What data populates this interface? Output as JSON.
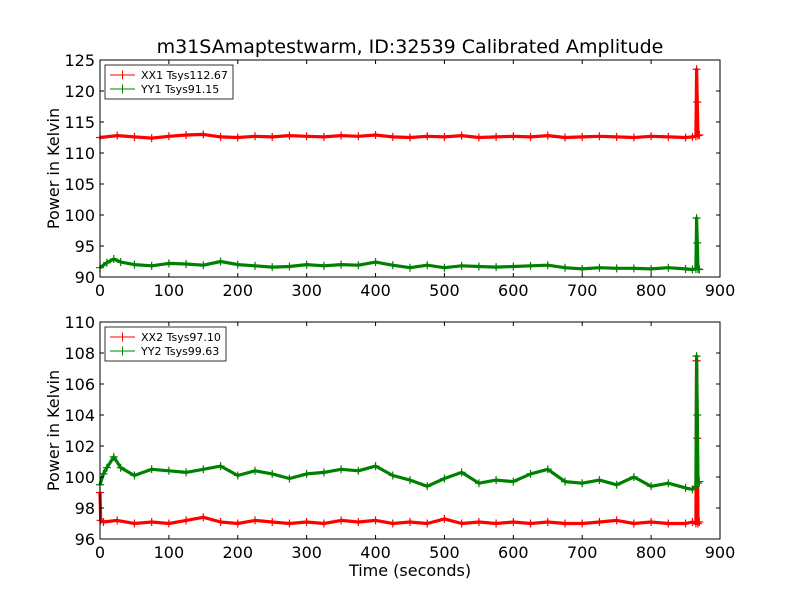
{
  "figure": {
    "title": "m31SAmaptestwarm, ID:32539 Calibrated Amplitude"
  },
  "chart_data": [
    {
      "type": "line",
      "title": "m31SAmaptestwarm, ID:32539 Calibrated Amplitude",
      "xlabel": "",
      "ylabel": "Power in Kelvin",
      "xlim": [
        0,
        900
      ],
      "ylim": [
        90,
        125
      ],
      "xticks": [
        "0",
        "100",
        "200",
        "300",
        "400",
        "500",
        "600",
        "700",
        "800",
        "900"
      ],
      "yticks": [
        "90",
        "95",
        "100",
        "105",
        "110",
        "115",
        "120",
        "125"
      ],
      "legend_position": "top-left",
      "grid": false,
      "series": [
        {
          "name": "XX1 Tsys112.67",
          "color": "#ff0000",
          "marker": "+",
          "x": [
            0,
            25,
            50,
            75,
            100,
            125,
            150,
            175,
            200,
            225,
            250,
            275,
            300,
            325,
            350,
            375,
            400,
            425,
            450,
            475,
            500,
            525,
            550,
            575,
            600,
            625,
            650,
            675,
            700,
            725,
            750,
            775,
            800,
            825,
            850,
            860,
            865,
            866,
            867,
            868,
            870
          ],
          "y": [
            112.5,
            112.8,
            112.6,
            112.4,
            112.7,
            112.9,
            113.0,
            112.6,
            112.5,
            112.7,
            112.6,
            112.8,
            112.7,
            112.6,
            112.8,
            112.7,
            112.9,
            112.6,
            112.5,
            112.7,
            112.6,
            112.8,
            112.5,
            112.6,
            112.7,
            112.6,
            112.8,
            112.5,
            112.6,
            112.7,
            112.6,
            112.5,
            112.7,
            112.6,
            112.5,
            112.6,
            112.7,
            123.5,
            118.2,
            112.8,
            112.9
          ]
        },
        {
          "name": "YY1 Tsys91.15",
          "color": "#008000",
          "marker": "+",
          "x": [
            0,
            10,
            20,
            30,
            50,
            75,
            100,
            125,
            150,
            175,
            200,
            225,
            250,
            275,
            300,
            325,
            350,
            375,
            400,
            425,
            450,
            475,
            500,
            525,
            550,
            575,
            600,
            625,
            650,
            675,
            700,
            725,
            750,
            775,
            800,
            825,
            850,
            860,
            865,
            866,
            867,
            868,
            870
          ],
          "y": [
            91.5,
            92.3,
            92.9,
            92.4,
            92.0,
            91.8,
            92.2,
            92.1,
            91.9,
            92.5,
            92.0,
            91.8,
            91.6,
            91.7,
            92.0,
            91.8,
            92.0,
            91.9,
            92.4,
            91.9,
            91.5,
            91.9,
            91.5,
            91.8,
            91.7,
            91.6,
            91.7,
            91.8,
            91.9,
            91.5,
            91.3,
            91.5,
            91.4,
            91.4,
            91.3,
            91.5,
            91.3,
            91.2,
            91.3,
            99.5,
            95.5,
            91.3,
            91.2
          ]
        }
      ]
    },
    {
      "type": "line",
      "title": "",
      "xlabel": "Time (seconds)",
      "ylabel": "Power in Kelvin",
      "xlim": [
        0,
        900
      ],
      "ylim": [
        96,
        110
      ],
      "xticks": [
        "0",
        "100",
        "200",
        "300",
        "400",
        "500",
        "600",
        "700",
        "800",
        "900"
      ],
      "yticks": [
        "96",
        "98",
        "100",
        "102",
        "104",
        "106",
        "108",
        "110"
      ],
      "legend_position": "top-left",
      "grid": false,
      "series": [
        {
          "name": "XX2 Tsys97.10",
          "color": "#ff0000",
          "marker": "+",
          "x": [
            0,
            1,
            5,
            25,
            50,
            75,
            100,
            125,
            150,
            175,
            200,
            225,
            250,
            275,
            300,
            325,
            350,
            375,
            400,
            425,
            450,
            475,
            500,
            525,
            550,
            575,
            600,
            625,
            650,
            675,
            700,
            725,
            750,
            775,
            800,
            825,
            850,
            860,
            865,
            866,
            867,
            868,
            870
          ],
          "y": [
            99.0,
            97.2,
            97.1,
            97.2,
            97.0,
            97.1,
            97.0,
            97.2,
            97.4,
            97.1,
            97.0,
            97.2,
            97.1,
            97.0,
            97.1,
            97.0,
            97.2,
            97.1,
            97.2,
            97.0,
            97.1,
            97.0,
            97.3,
            97.0,
            97.1,
            97.0,
            97.1,
            97.0,
            97.1,
            97.0,
            97.0,
            97.1,
            97.2,
            97.0,
            97.1,
            97.0,
            97.0,
            97.1,
            97.0,
            107.5,
            102.5,
            97.0,
            97.1
          ]
        },
        {
          "name": "YY2 Tsys99.63",
          "color": "#008000",
          "marker": "+",
          "x": [
            0,
            5,
            10,
            20,
            30,
            50,
            75,
            100,
            125,
            150,
            175,
            200,
            225,
            250,
            275,
            300,
            325,
            350,
            375,
            400,
            425,
            450,
            475,
            500,
            525,
            550,
            575,
            600,
            625,
            650,
            675,
            700,
            725,
            750,
            775,
            800,
            825,
            850,
            860,
            865,
            866,
            867,
            868,
            870
          ],
          "y": [
            99.5,
            100.2,
            100.6,
            101.3,
            100.6,
            100.1,
            100.5,
            100.4,
            100.3,
            100.5,
            100.7,
            100.1,
            100.4,
            100.2,
            99.9,
            100.2,
            100.3,
            100.5,
            100.4,
            100.7,
            100.1,
            99.8,
            99.4,
            99.9,
            100.3,
            99.6,
            99.8,
            99.7,
            100.2,
            100.5,
            99.7,
            99.6,
            99.8,
            99.5,
            100.0,
            99.4,
            99.6,
            99.3,
            99.2,
            99.4,
            107.8,
            104.0,
            99.6,
            99.7
          ]
        }
      ]
    }
  ]
}
